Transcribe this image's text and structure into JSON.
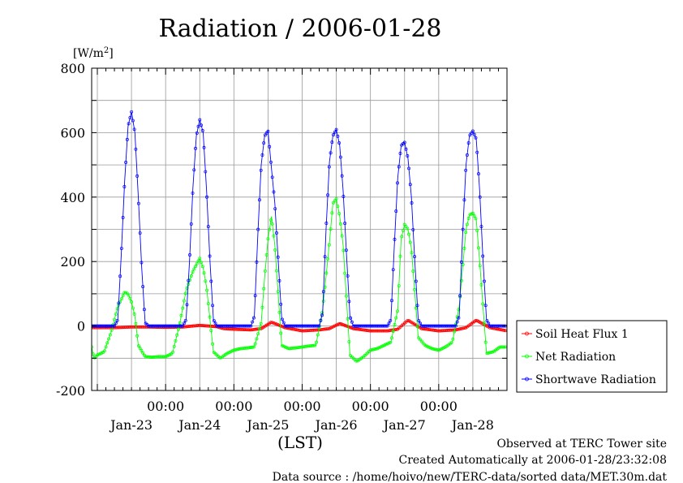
{
  "chart_data": {
    "type": "line",
    "title": "Radiation / 2006-01-28",
    "ylabel_unit": "[W/m",
    "ylabel_unit_sup": "2",
    "ylabel_unit_end": "]",
    "ylim": [
      -200,
      800
    ],
    "yticks": [
      "800",
      "600",
      "400",
      "200",
      "0",
      "-200"
    ],
    "ytick_values": [
      800,
      600,
      400,
      200,
      0,
      -200
    ],
    "xlabel": "(LST)",
    "xlim": [
      -0.0833,
      6.0
    ],
    "xtick_time_label": "00:00",
    "xtick_days": [
      1,
      2,
      3,
      4,
      5
    ],
    "date_labels": [
      "Jan-23",
      "Jan-24",
      "Jan-25",
      "Jan-26",
      "Jan-27",
      "Jan-28"
    ],
    "date_positions": [
      0.5,
      1.5,
      2.5,
      3.5,
      4.5,
      5.5
    ],
    "grid": true,
    "legend_position": "right",
    "series": [
      {
        "name": "Soil Heat Flux 1",
        "color": "#ff0000",
        "x": [
          -0.083,
          0.0,
          0.25,
          0.5,
          0.75,
          1.0,
          1.25,
          1.5,
          1.75,
          1.85,
          2.0,
          2.25,
          2.4,
          2.55,
          2.75,
          3.0,
          3.25,
          3.4,
          3.55,
          3.75,
          4.0,
          4.25,
          4.4,
          4.55,
          4.75,
          5.0,
          5.25,
          5.4,
          5.55,
          5.75,
          6.0
        ],
        "y": [
          -5,
          -5,
          -5,
          -3,
          -3,
          -4,
          -3,
          2,
          -2,
          -8,
          -10,
          -12,
          -8,
          12,
          -5,
          -15,
          -12,
          -8,
          8,
          -8,
          -15,
          -15,
          -10,
          18,
          -8,
          -15,
          -12,
          -5,
          18,
          -5,
          -15
        ]
      },
      {
        "name": "Net Radiation",
        "color": "#00ff00",
        "x": [
          -0.083,
          -0.05,
          0.0,
          0.1,
          0.2,
          0.3,
          0.4,
          0.45,
          0.5,
          0.55,
          0.6,
          0.7,
          0.8,
          0.9,
          1.0,
          1.1,
          1.2,
          1.3,
          1.4,
          1.5,
          1.55,
          1.6,
          1.7,
          1.8,
          1.9,
          2.0,
          2.1,
          2.2,
          2.3,
          2.4,
          2.45,
          2.5,
          2.55,
          2.6,
          2.7,
          2.8,
          2.9,
          3.0,
          3.1,
          3.2,
          3.3,
          3.4,
          3.45,
          3.5,
          3.55,
          3.6,
          3.7,
          3.8,
          3.9,
          4.0,
          4.1,
          4.2,
          4.3,
          4.4,
          4.45,
          4.5,
          4.55,
          4.6,
          4.7,
          4.8,
          4.9,
          5.0,
          5.1,
          5.2,
          5.3,
          5.4,
          5.45,
          5.5,
          5.55,
          5.6,
          5.7,
          5.8,
          5.9,
          6.0
        ],
        "y": [
          -65,
          -100,
          -90,
          -80,
          -20,
          60,
          105,
          100,
          75,
          30,
          -60,
          -95,
          -97,
          -95,
          -95,
          -85,
          0,
          110,
          170,
          210,
          180,
          120,
          -80,
          -100,
          -85,
          -75,
          -70,
          -68,
          -65,
          10,
          150,
          270,
          340,
          250,
          -60,
          -70,
          -68,
          -65,
          -62,
          -60,
          50,
          260,
          380,
          395,
          340,
          250,
          -90,
          -110,
          -95,
          -75,
          -70,
          -60,
          -50,
          50,
          270,
          315,
          300,
          240,
          -35,
          -60,
          -70,
          -75,
          -65,
          -50,
          60,
          300,
          345,
          350,
          330,
          200,
          -85,
          -80,
          -65,
          -65
        ]
      },
      {
        "name": "Shortwave Radiation",
        "color": "#0000ff",
        "x": [
          -0.083,
          0.0,
          0.25,
          0.3,
          0.35,
          0.4,
          0.45,
          0.5,
          0.55,
          0.6,
          0.65,
          0.7,
          0.75,
          1.0,
          1.25,
          1.3,
          1.35,
          1.4,
          1.45,
          1.5,
          1.55,
          1.6,
          1.65,
          1.7,
          1.75,
          2.0,
          2.25,
          2.3,
          2.35,
          2.4,
          2.45,
          2.5,
          2.55,
          2.6,
          2.65,
          2.7,
          2.75,
          3.0,
          3.25,
          3.3,
          3.35,
          3.4,
          3.45,
          3.5,
          3.55,
          3.6,
          3.65,
          3.7,
          3.75,
          4.0,
          4.25,
          4.3,
          4.35,
          4.4,
          4.45,
          4.5,
          4.55,
          4.6,
          4.65,
          4.7,
          4.75,
          5.0,
          5.25,
          5.3,
          5.35,
          5.4,
          5.45,
          5.5,
          5.55,
          5.6,
          5.65,
          5.7,
          5.75,
          6.0
        ],
        "y": [
          0,
          0,
          0,
          20,
          220,
          450,
          620,
          665,
          600,
          400,
          180,
          10,
          0,
          0,
          0,
          20,
          200,
          430,
          590,
          640,
          600,
          420,
          200,
          20,
          0,
          0,
          0,
          30,
          280,
          500,
          590,
          605,
          490,
          380,
          200,
          25,
          0,
          0,
          0,
          40,
          300,
          510,
          590,
          610,
          560,
          420,
          220,
          30,
          0,
          0,
          0,
          20,
          250,
          460,
          560,
          570,
          520,
          400,
          200,
          20,
          0,
          0,
          0,
          30,
          280,
          500,
          590,
          605,
          580,
          420,
          200,
          20,
          0,
          0
        ]
      }
    ]
  },
  "footer": {
    "line1": "Observed at TERC Tower site",
    "line2": "Created Automatically at 2006-01-28/23:32:08",
    "line3": "Data source : /home/hoivo/new/TERC-data/sorted  data/MET.30m.dat"
  }
}
